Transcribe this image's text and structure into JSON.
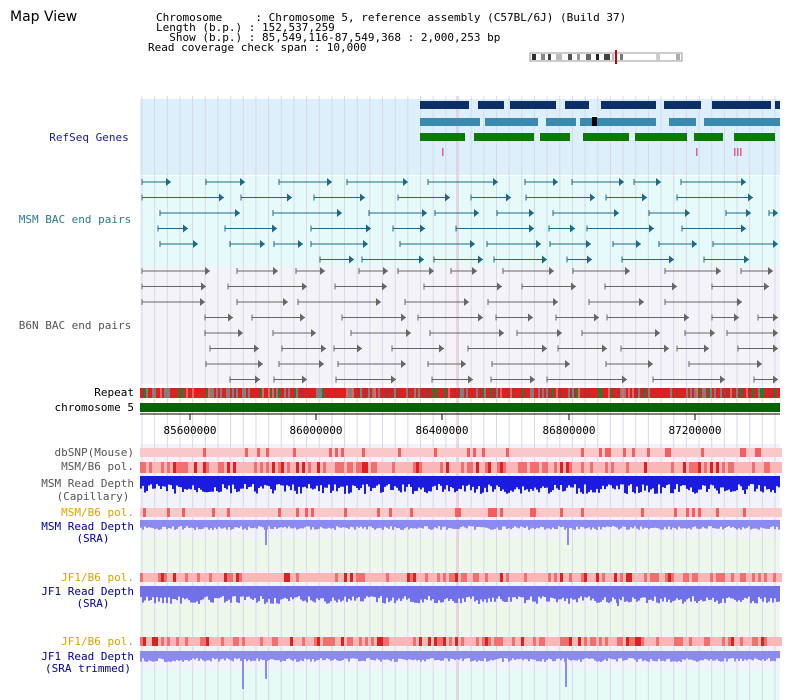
{
  "app": {
    "title": "Map View"
  },
  "header": {
    "line1": "Chromosome     : Chromosome 5, reference assembly (C57BL/6J) (Build 37)",
    "line2": "Length (b.p.) : 152,537,259",
    "line3": "  Show (b.p.) : 85,549,116-87,549,368 : 2,000,253 bp",
    "line4": "Read coverage check span : 10,000"
  },
  "tracks": {
    "refseq": "RefSeq Genes",
    "msm_bac": "MSM BAC end pairs",
    "b6n_bac": "B6N BAC end pairs",
    "repeat": "Repeat",
    "chromosome": "chromosome 5",
    "dbsnp": "dbSNP(Mouse)",
    "msm_b6_pol_1": "MSM/B6 pol.",
    "msm_depth_cap_1": "MSM Read Depth",
    "msm_depth_cap_2": "(Capillary)",
    "msm_b6_pol_2": "MSM/B6 pol.",
    "msm_depth_sra_1": "MSM Read Depth",
    "msm_depth_sra_2": "(SRA)",
    "jf1_b6_pol_1": "JF1/B6 pol.",
    "jf1_depth_sra_1": "JF1 Read Depth",
    "jf1_depth_sra_2": "(SRA)",
    "jf1_b6_pol_2": "JF1/B6 pol.",
    "jf1_depth_trim_1": "JF1 Read Depth",
    "jf1_depth_trim_2": "(SRA trimmed)"
  },
  "axis": {
    "ticks": [
      "85600000",
      "86000000",
      "86400000",
      "86800000",
      "87200000"
    ]
  },
  "colors": {
    "refseq_label": "#1a1aa0",
    "msm_label": "#2a7a8c",
    "b6n_label": "#555555",
    "gold_label": "#e0a000",
    "navy_label": "#000099",
    "gene_dark": "#0b2f66",
    "gene_mid": "#3a8ab0",
    "gene_green": "#0a7a0a",
    "msm_pair": "#1a6a88",
    "b6n_pair": "#666666",
    "chrom_green": "#006600"
  }
}
